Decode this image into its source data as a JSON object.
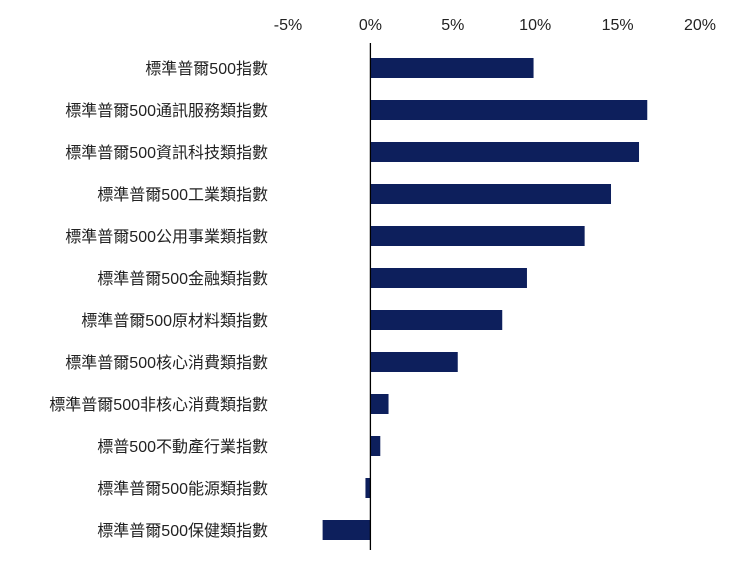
{
  "chart_data": {
    "type": "bar",
    "orientation": "horizontal",
    "categories": [
      "標準普爾500指數",
      "標準普爾500通訊服務類指數",
      "標準普爾500資訊科技類指數",
      "標準普爾500工業類指數",
      "標準普爾500公用事業類指數",
      "標準普爾500金融類指數",
      "標準普爾500原材料類指數",
      "標準普爾500核心消費類指數",
      "標準普爾500非核心消費類指數",
      "標普500不動產行業指數",
      "標準普爾500能源類指數",
      "標準普爾500保健類指數"
    ],
    "values": [
      9.9,
      16.8,
      16.3,
      14.6,
      13.0,
      9.5,
      8.0,
      5.3,
      1.1,
      0.6,
      -0.3,
      -2.9
    ],
    "value_unit": "%",
    "xlim": [
      -5,
      20
    ],
    "xticks": [
      -5,
      0,
      5,
      10,
      15,
      20
    ],
    "xtick_labels": [
      "-5%",
      "0%",
      "5%",
      "10%",
      "15%",
      "20%"
    ],
    "axis_position": "top",
    "grid": false,
    "legend": "none",
    "title": "",
    "xlabel": "",
    "ylabel": "",
    "bar_color": "#0d1f5c",
    "zero_line_color": "#000000"
  }
}
